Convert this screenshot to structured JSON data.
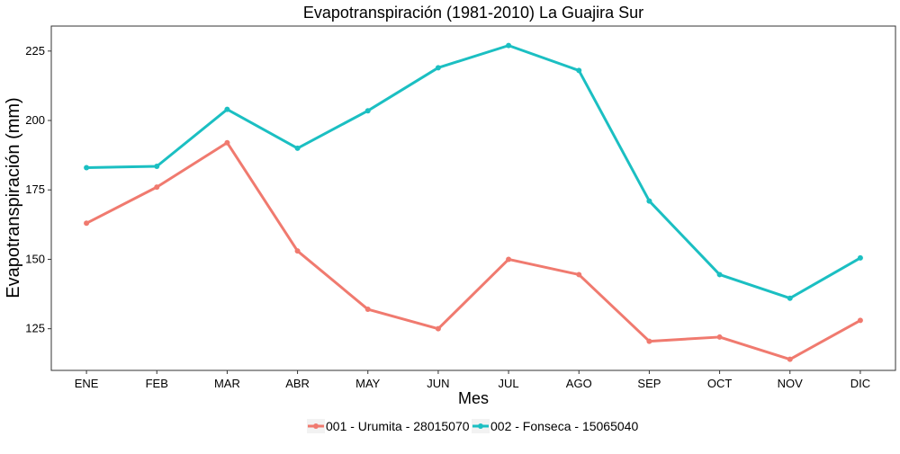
{
  "chart_data": {
    "type": "line",
    "title": "Evapotranspiración (1981-2010)  La Guajira Sur",
    "xlabel": "Mes",
    "ylabel": "Evapotranspiración  (mm)",
    "categories": [
      "ENE",
      "FEB",
      "MAR",
      "ABR",
      "MAY",
      "JUN",
      "JUL",
      "AGO",
      "SEP",
      "OCT",
      "NOV",
      "DIC"
    ],
    "yticks": [
      125,
      150,
      175,
      200,
      225
    ],
    "ylim": [
      110,
      234
    ],
    "grid": false,
    "legend_position": "bottom",
    "series": [
      {
        "name": "001 - Urumita - 28015070",
        "color": "#f07a6f",
        "values": [
          163,
          176,
          192,
          153,
          132,
          125,
          150,
          144.5,
          120.5,
          122,
          114,
          128
        ]
      },
      {
        "name": "002 - Fonseca - 15065040",
        "color": "#1bbfc2",
        "values": [
          183,
          183.5,
          204,
          190,
          203.5,
          219,
          227,
          218,
          171,
          144.5,
          136,
          150.5
        ]
      }
    ]
  }
}
